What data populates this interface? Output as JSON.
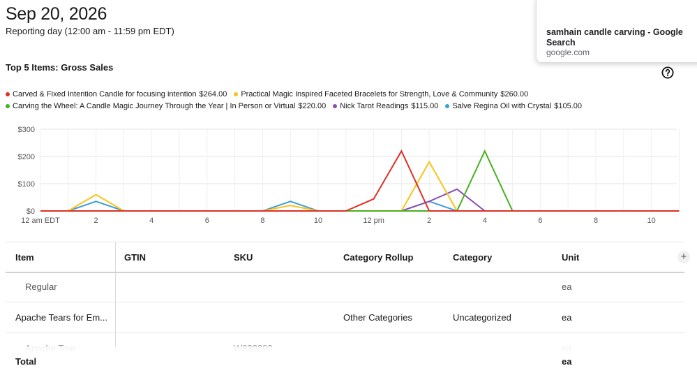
{
  "header": {
    "date": "Sep 20, 2026",
    "subtitle": "Reporting day (12:00 am - 11:59 pm EDT)",
    "section_title": "Top 5 Items: Gross Sales"
  },
  "popup": {
    "title": "samhain candle carving - Google Search",
    "url": "google.com"
  },
  "legend": [
    {
      "name": "Carved & Fixed Intention Candle for focusing intention",
      "value": "$264.00",
      "color": "#e03024"
    },
    {
      "name": "Practical Magic Inspired Faceted Bracelets for Strength, Love & Community",
      "value": "$260.00",
      "color": "#f5c518"
    },
    {
      "name": "Carving the Wheel: A Candle Magic Journey Through the Year | In Person or Virtual",
      "value": "$220.00",
      "color": "#46b01e"
    },
    {
      "name": "Nick Tarot Readings",
      "value": "$115.00",
      "color": "#8a4fb3"
    },
    {
      "name": "Salve Regina Oil with Crystal",
      "value": "$105.00",
      "color": "#3d9fd8"
    }
  ],
  "chart_data": {
    "type": "line",
    "x": [
      0,
      1,
      2,
      3,
      4,
      5,
      6,
      7,
      8,
      9,
      10,
      11,
      12,
      13,
      14,
      15,
      16,
      17,
      18,
      19,
      20,
      21,
      22,
      23
    ],
    "x_tick_labels": [
      "12 am EDT",
      "2",
      "4",
      "6",
      "8",
      "10",
      "12 pm",
      "2",
      "4",
      "6",
      "8",
      "10"
    ],
    "y_tick_labels": [
      "$0",
      "$100",
      "$200",
      "$300"
    ],
    "ylim": [
      0,
      300
    ],
    "grid": true,
    "series": [
      {
        "name": "Carved & Fixed Intention Candle for focusing intention",
        "color": "#e03024",
        "values": [
          0,
          0,
          0,
          0,
          0,
          0,
          0,
          0,
          0,
          0,
          0,
          0,
          44,
          220,
          0,
          0,
          0,
          0,
          0,
          0,
          0,
          0,
          0,
          0
        ]
      },
      {
        "name": "Practical Magic Inspired Faceted Bracelets for Strength, Love & Community",
        "color": "#f5c518",
        "values": [
          0,
          0,
          60,
          0,
          0,
          0,
          0,
          0,
          0,
          20,
          0,
          0,
          0,
          0,
          180,
          0,
          0,
          0,
          0,
          0,
          0,
          0,
          0,
          0
        ]
      },
      {
        "name": "Carving the Wheel: A Candle Magic Journey Through the Year | In Person or Virtual",
        "color": "#46b01e",
        "values": [
          0,
          0,
          0,
          0,
          0,
          0,
          0,
          0,
          0,
          0,
          0,
          0,
          0,
          0,
          0,
          0,
          220,
          0,
          0,
          0,
          0,
          0,
          0,
          0
        ]
      },
      {
        "name": "Nick Tarot Readings",
        "color": "#8a4fb3",
        "values": [
          0,
          0,
          0,
          0,
          0,
          0,
          0,
          0,
          0,
          0,
          0,
          0,
          0,
          0,
          35,
          80,
          0,
          0,
          0,
          0,
          0,
          0,
          0,
          0
        ]
      },
      {
        "name": "Salve Regina Oil with Crystal",
        "color": "#3d9fd8",
        "values": [
          0,
          0,
          35,
          0,
          0,
          0,
          0,
          0,
          0,
          35,
          0,
          0,
          0,
          0,
          35,
          0,
          0,
          0,
          0,
          0,
          0,
          0,
          0,
          0
        ]
      }
    ]
  },
  "table": {
    "headers": {
      "item": "Item",
      "gtin": "GTIN",
      "sku": "SKU",
      "category_rollup": "Category Rollup",
      "category": "Category",
      "unit": "Unit"
    },
    "rows": [
      {
        "item": "Regular",
        "gtin": "",
        "sku": "",
        "category_rollup": "",
        "category": "",
        "unit": "ea"
      },
      {
        "item": "Apache Tears for Em...",
        "gtin": "",
        "sku": "",
        "category_rollup": "Other Categories",
        "category": "Uncategorized",
        "unit": "ea"
      },
      {
        "item": "Apache Tear",
        "gtin": "",
        "sku": "W633892",
        "category_rollup": "",
        "category": "",
        "unit": "ea"
      }
    ],
    "total": {
      "label": "Total",
      "unit": "ea"
    }
  }
}
